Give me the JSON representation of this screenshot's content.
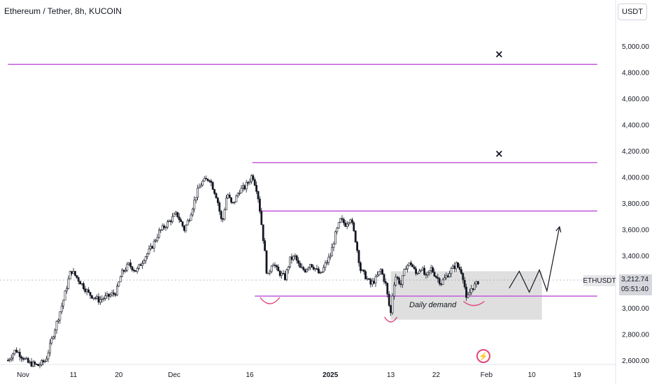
{
  "header": {
    "title": "Ethereum / Tether, 8h, KUCOIN",
    "currency": "USDT"
  },
  "price_tag": {
    "symbol": "ETHUSDT",
    "price": "3,212.74",
    "countdown": "05:51:40"
  },
  "annotations": {
    "zone_label": "Daily demand",
    "cross_marker": "×"
  },
  "colors": {
    "candle": "#131722",
    "level_line": "#c25bdb",
    "zone_fill": "#d9d9d9",
    "curve": "#e0457b",
    "projection": "#131722"
  },
  "chart_data": {
    "type": "candlestick",
    "title": "Ethereum / Tether, 8h, KUCOIN",
    "ylabel": "",
    "y_scale": "linear",
    "ylim": [
      2550,
      5250
    ],
    "y_ticks": [
      2600,
      2800,
      3000,
      3200,
      3400,
      3600,
      3800,
      4000,
      4200,
      4400,
      4600,
      4800,
      5000
    ],
    "y_tick_labels": [
      "2,600.00",
      "2,800.00",
      "3,000.00",
      "3,200.00",
      "3,400.00",
      "3,600.00",
      "3,800.00",
      "4,000.00",
      "4,200.00",
      "4,400.00",
      "4,600.00",
      "4,800.00",
      "5,000.00"
    ],
    "x_ticks": [
      {
        "label": "Nov",
        "day": 0
      },
      {
        "label": "11",
        "day": 10
      },
      {
        "label": "20",
        "day": 19
      },
      {
        "label": "Dec",
        "day": 30
      },
      {
        "label": "16",
        "day": 45
      },
      {
        "label": "2025",
        "day": 61
      },
      {
        "label": "13",
        "day": 73
      },
      {
        "label": "22",
        "day": 82
      },
      {
        "label": "Feb",
        "day": 92
      },
      {
        "label": "10",
        "day": 101
      },
      {
        "label": "19",
        "day": 110
      }
    ],
    "close_path": [
      [
        -3,
        2600
      ],
      [
        -1.5,
        2680
      ],
      [
        -0.5,
        2640
      ],
      [
        1,
        2580
      ],
      [
        3,
        2560
      ],
      [
        4.5,
        2600
      ],
      [
        6,
        2800
      ],
      [
        8,
        3060
      ],
      [
        9.5,
        3290
      ],
      [
        11.5,
        3190
      ],
      [
        13,
        3110
      ],
      [
        15,
        3060
      ],
      [
        17,
        3090
      ],
      [
        18.5,
        3120
      ],
      [
        19.5,
        3260
      ],
      [
        21,
        3330
      ],
      [
        22.5,
        3280
      ],
      [
        24,
        3380
      ],
      [
        25.5,
        3460
      ],
      [
        27,
        3580
      ],
      [
        29,
        3660
      ],
      [
        30.5,
        3720
      ],
      [
        32,
        3600
      ],
      [
        33,
        3690
      ],
      [
        34.5,
        3880
      ],
      [
        35.5,
        3960
      ],
      [
        37,
        3990
      ],
      [
        38.5,
        3840
      ],
      [
        39.5,
        3640
      ],
      [
        40.5,
        3880
      ],
      [
        41.5,
        3780
      ],
      [
        43,
        3900
      ],
      [
        44,
        3920
      ],
      [
        45,
        3980
      ],
      [
        45.5,
        4020
      ],
      [
        46.5,
        3890
      ],
      [
        47,
        3750
      ],
      [
        48,
        3420
      ],
      [
        48.5,
        3220
      ],
      [
        49.5,
        3360
      ],
      [
        50.5,
        3280
      ],
      [
        52,
        3230
      ],
      [
        53,
        3370
      ],
      [
        54,
        3390
      ],
      [
        55,
        3300
      ],
      [
        56,
        3290
      ],
      [
        57,
        3340
      ],
      [
        58,
        3300
      ],
      [
        59,
        3250
      ],
      [
        60,
        3330
      ],
      [
        61,
        3400
      ],
      [
        62,
        3560
      ],
      [
        63,
        3670
      ],
      [
        64,
        3640
      ],
      [
        65,
        3690
      ],
      [
        66,
        3520
      ],
      [
        67,
        3290
      ],
      [
        68,
        3240
      ],
      [
        69,
        3180
      ],
      [
        70,
        3220
      ],
      [
        71,
        3290
      ],
      [
        72,
        3180
      ],
      [
        72.6,
        3030
      ],
      [
        73,
        2960
      ],
      [
        73.5,
        3170
      ],
      [
        74,
        3240
      ],
      [
        75,
        3180
      ],
      [
        76,
        3320
      ],
      [
        77,
        3340
      ],
      [
        78,
        3260
      ],
      [
        79,
        3310
      ],
      [
        80,
        3230
      ],
      [
        81,
        3300
      ],
      [
        82,
        3240
      ],
      [
        83,
        3190
      ],
      [
        84,
        3240
      ],
      [
        85,
        3290
      ],
      [
        86,
        3330
      ],
      [
        87,
        3280
      ],
      [
        87.5,
        3210
      ],
      [
        88,
        3060
      ],
      [
        88.5,
        3100
      ],
      [
        89,
        3150
      ],
      [
        90,
        3180
      ],
      [
        90.5,
        3212
      ]
    ],
    "levels": [
      {
        "price": 4860,
        "from_day": -3,
        "to_day": 114
      },
      {
        "price": 4110,
        "from_day": 45.5,
        "to_day": 114
      },
      {
        "price": 3740,
        "from_day": 47,
        "to_day": 114
      },
      {
        "price": 3090,
        "from_day": 46,
        "to_day": 114
      }
    ],
    "cross_markers": [
      {
        "day": 94.5,
        "price": 4940
      },
      {
        "day": 94.5,
        "price": 4180
      }
    ],
    "demand_zone": {
      "from_day": 73,
      "to_day": 103,
      "low": 2910,
      "high": 3280,
      "label": "Daily demand"
    },
    "projection_path": [
      [
        96.5,
        3150
      ],
      [
        98.5,
        3280
      ],
      [
        100.5,
        3120
      ],
      [
        102.5,
        3290
      ],
      [
        104,
        3130
      ],
      [
        106.5,
        3620
      ]
    ],
    "last_price": 3212.74
  }
}
